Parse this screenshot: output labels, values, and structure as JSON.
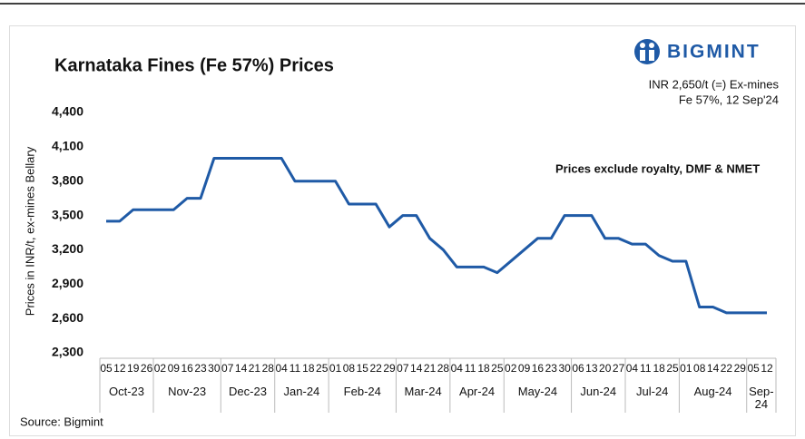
{
  "brand": "BIGMINT",
  "source": "Source: Bigmint",
  "chart_data": {
    "type": "line",
    "title": "Karnataka Fines (Fe 57%) Prices",
    "annotation": [
      "INR 2,650/t (=) Ex-mines",
      "Fe 57%, 12 Sep'24"
    ],
    "note": "Prices exclude royalty, DMF & NMET",
    "y_label": "Prices in INR/t, ex-mines Bellary",
    "category_groups": [
      {
        "label": "Oct-23",
        "categories": [
          "05",
          "12",
          "19",
          "26"
        ]
      },
      {
        "label": "Nov-23",
        "categories": [
          "02",
          "09",
          "16",
          "23",
          "30"
        ]
      },
      {
        "label": "Dec-23",
        "categories": [
          "07",
          "14",
          "21",
          "28"
        ]
      },
      {
        "label": "Jan-24",
        "categories": [
          "04",
          "11",
          "18",
          "25"
        ]
      },
      {
        "label": "Feb-24",
        "categories": [
          "01",
          "08",
          "15",
          "22",
          "29"
        ]
      },
      {
        "label": "Mar-24",
        "categories": [
          "07",
          "14",
          "21",
          "28"
        ]
      },
      {
        "label": "Apr-24",
        "categories": [
          "04",
          "11",
          "18",
          "25"
        ]
      },
      {
        "label": "May-24",
        "categories": [
          "02",
          "09",
          "16",
          "23",
          "30"
        ]
      },
      {
        "label": "Jun-24",
        "categories": [
          "06",
          "13",
          "20",
          "27"
        ]
      },
      {
        "label": "Jul-24",
        "categories": [
          "04",
          "11",
          "18",
          "25"
        ]
      },
      {
        "label": "Aug-24",
        "categories": [
          "01",
          "08",
          "14",
          "22",
          "29"
        ]
      },
      {
        "label": "Sep-24",
        "categories": [
          "05",
          "12"
        ]
      }
    ],
    "values": [
      3450,
      3450,
      3550,
      3550,
      3550,
      3550,
      3650,
      3650,
      4000,
      4000,
      4000,
      4000,
      4000,
      4000,
      3800,
      3800,
      3800,
      3800,
      3600,
      3600,
      3600,
      3400,
      3500,
      3500,
      3300,
      3200,
      3050,
      3050,
      3050,
      3000,
      3100,
      3200,
      3300,
      3300,
      3500,
      3500,
      3500,
      3300,
      3300,
      3250,
      3250,
      3150,
      3100,
      3100,
      2700,
      2700,
      2650,
      2650,
      2650,
      2650
    ],
    "color": "#1f5aa6",
    "ylim": [
      2300,
      4400
    ],
    "yticks": [
      {
        "value": 2300,
        "label": "2,300"
      },
      {
        "value": 2600,
        "label": "2,600"
      },
      {
        "value": 2900,
        "label": "2,900"
      },
      {
        "value": 3200,
        "label": "3,200"
      },
      {
        "value": 3500,
        "label": "3,500"
      },
      {
        "value": 3800,
        "label": "3,800"
      },
      {
        "value": 4100,
        "label": "4,100"
      },
      {
        "value": 4400,
        "label": "4,400"
      }
    ]
  }
}
